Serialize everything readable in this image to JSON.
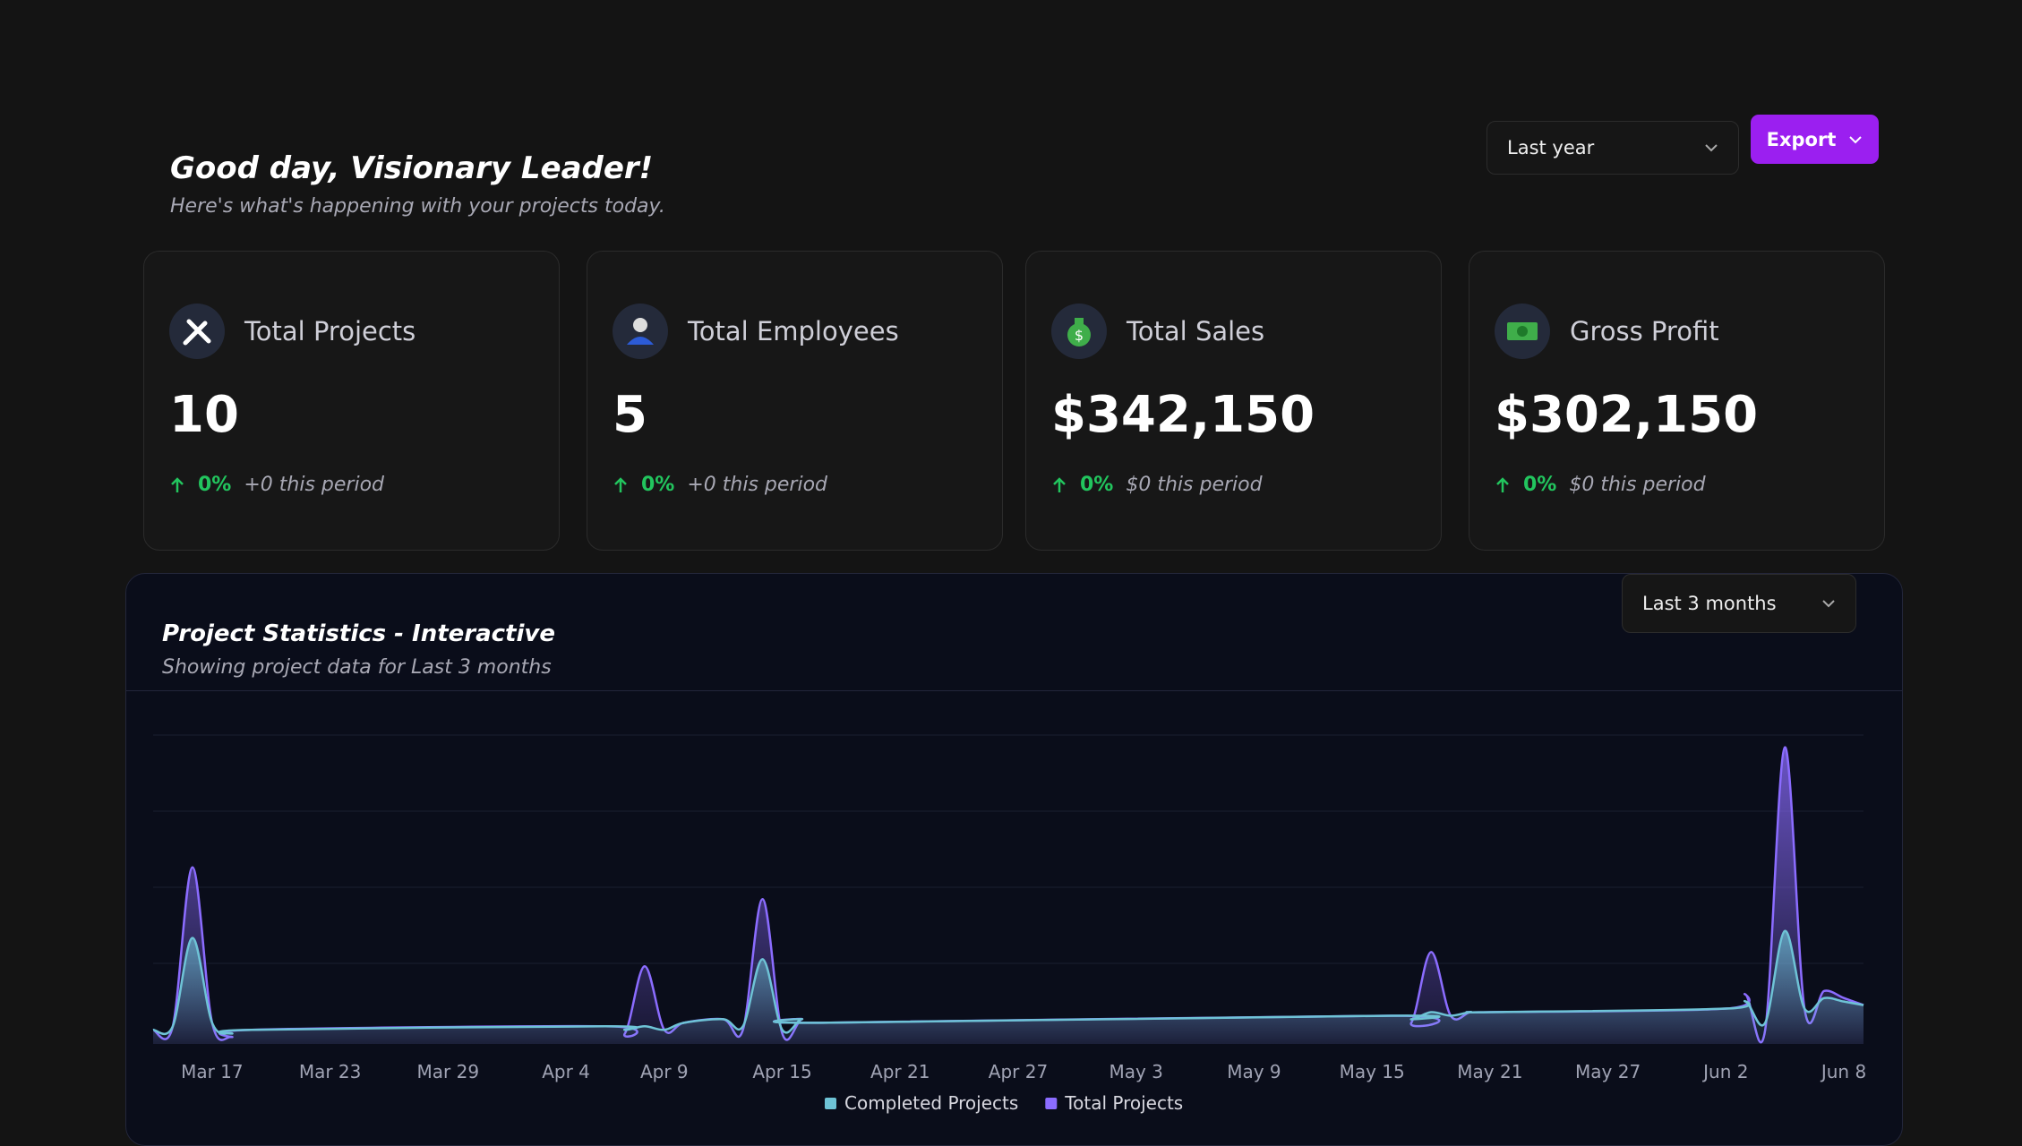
{
  "header": {
    "title": "Good day, Visionary Leader!",
    "subtitle": "Here's what's happening with your projects today.",
    "period": "Last year",
    "export": "Export"
  },
  "cards": [
    {
      "title": "Total Projects",
      "value": "10",
      "change": "0%",
      "note": "+0 this period"
    },
    {
      "title": "Total Employees",
      "value": "5",
      "change": "0%",
      "note": "+0 this period"
    },
    {
      "title": "Total Sales",
      "value": "$342,150",
      "change": "0%",
      "note": "$0 this period"
    },
    {
      "title": "Gross Profit",
      "value": "$302,150",
      "change": "0%",
      "note": "$0 this period"
    }
  ],
  "chart_data": {
    "type": "area",
    "title": "Project Statistics - Interactive",
    "subtitle": "Showing project data for Last 3 months",
    "range": "Last 3 months",
    "x": [
      0,
      1,
      2,
      3,
      4,
      5,
      23,
      24,
      25,
      26,
      27,
      29,
      30,
      31,
      32,
      33,
      34,
      63,
      64,
      65,
      66,
      67,
      68,
      80,
      81,
      82,
      83,
      84,
      85,
      86,
      87
    ],
    "xlim": [
      0,
      87
    ],
    "xticks": [
      {
        "value": 3,
        "label": "Mar 17"
      },
      {
        "value": 9,
        "label": "Mar 23"
      },
      {
        "value": 15,
        "label": "Mar 29"
      },
      {
        "value": 21,
        "label": "Apr 4"
      },
      {
        "value": 26,
        "label": "Apr 9"
      },
      {
        "value": 32,
        "label": "Apr 15"
      },
      {
        "value": 38,
        "label": "Apr 21"
      },
      {
        "value": 44,
        "label": "Apr 27"
      },
      {
        "value": 50,
        "label": "May 3"
      },
      {
        "value": 56,
        "label": "May 9"
      },
      {
        "value": 62,
        "label": "May 15"
      },
      {
        "value": 68,
        "label": "May 21"
      },
      {
        "value": 74,
        "label": "May 27"
      },
      {
        "value": 80,
        "label": "Jun 2"
      },
      {
        "value": 86,
        "label": "Jun 8"
      }
    ],
    "ylim": [
      0,
      9
    ],
    "series": [
      {
        "name": "Completed Projects",
        "color": "#6ec3d6",
        "values": [
          0.4,
          0.5,
          3,
          0.6,
          0.3,
          0.4,
          0.5,
          0.4,
          0.5,
          0.4,
          0.6,
          0.7,
          0.5,
          2.4,
          0.4,
          0.7,
          0.6,
          0.8,
          0.7,
          0.9,
          0.8,
          0.9,
          0.9,
          1,
          1.2,
          0.6,
          3.2,
          1,
          1.3,
          1.2,
          1.1
        ]
      },
      {
        "name": "Total Projects",
        "color": "#8b6cff",
        "values": [
          0.4,
          0.5,
          5,
          0.6,
          0.2,
          0.4,
          0.5,
          0.3,
          2.2,
          0.4,
          0.6,
          0.7,
          0.4,
          4.1,
          0.3,
          0.7,
          0.6,
          0.8,
          0.6,
          2.6,
          0.8,
          0.9,
          0.9,
          1,
          1.4,
          0.4,
          8.4,
          1,
          1.5,
          1.3,
          1.1
        ]
      }
    ]
  }
}
